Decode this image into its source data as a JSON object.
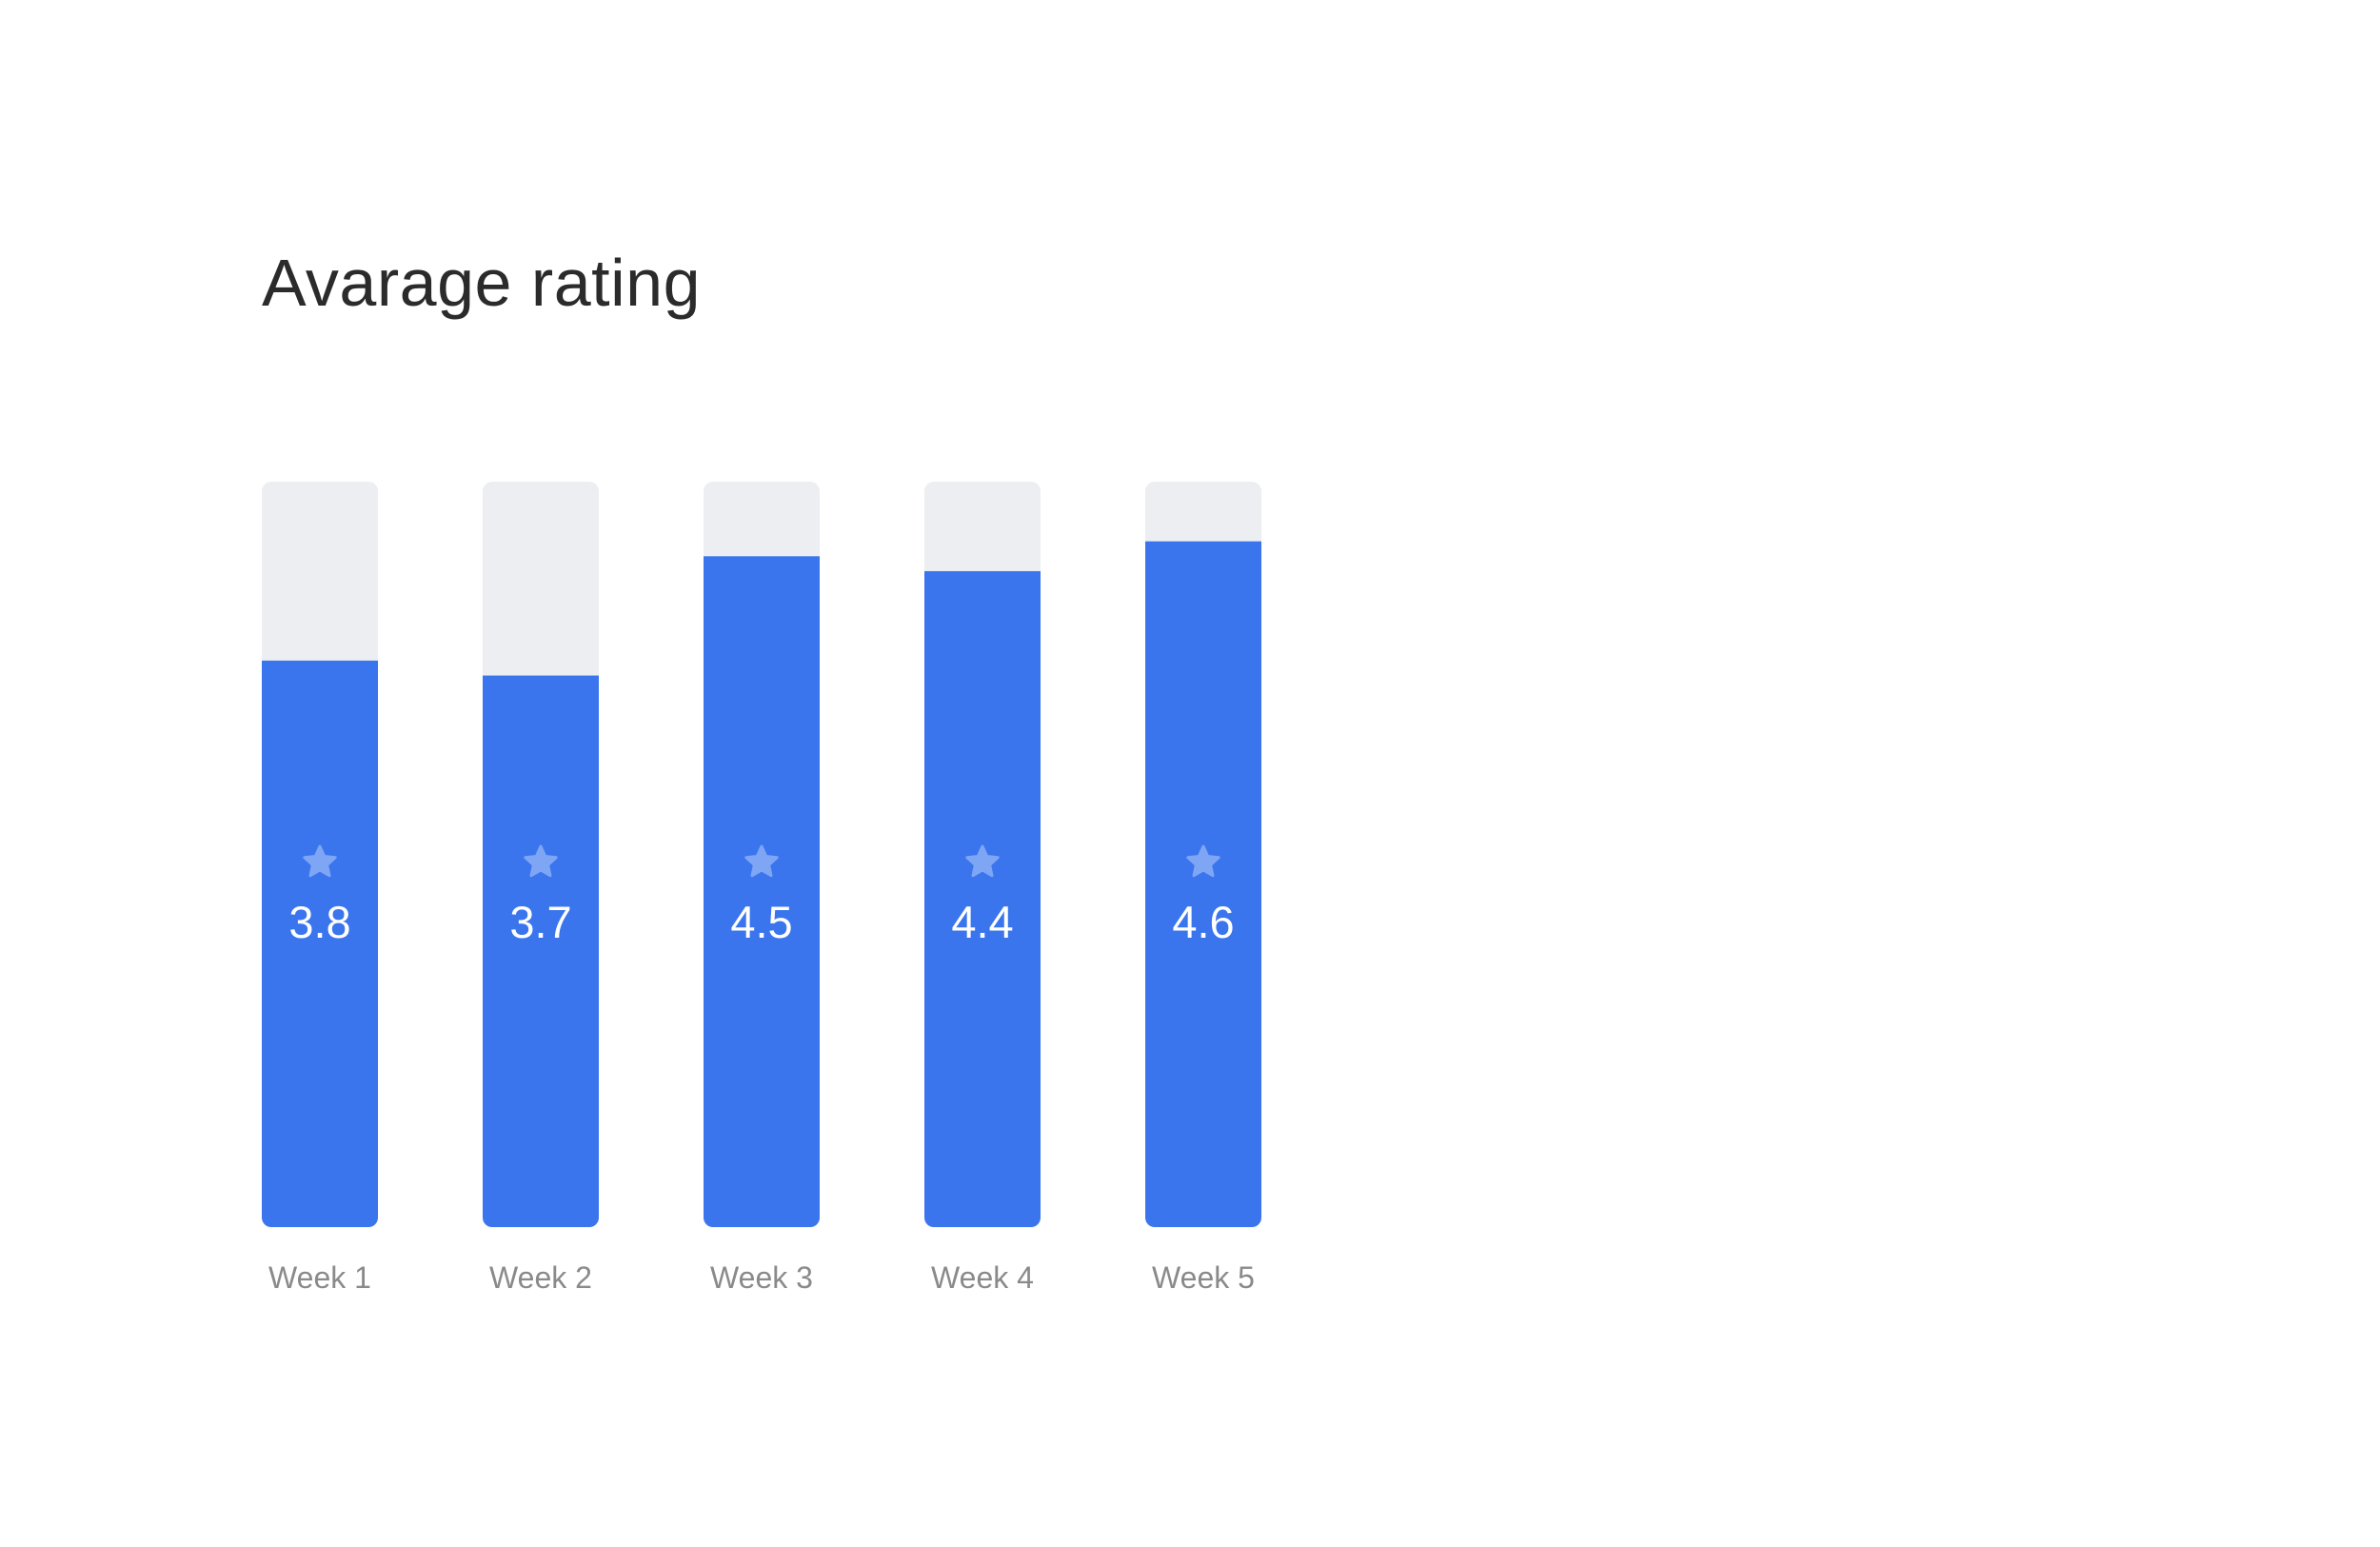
{
  "chart_data": {
    "type": "bar",
    "title": "Avarage rating",
    "categories": [
      "Week 1",
      "Week 2",
      "Week 3",
      "Week 4",
      "Week 5"
    ],
    "values": [
      3.8,
      3.7,
      4.5,
      4.4,
      4.6
    ],
    "ylim": [
      0,
      5
    ],
    "grid": false,
    "legend": "none",
    "value_icon": "star-icon",
    "colors": {
      "bar_fill": "#3a75ee",
      "bar_track": "#edeef2",
      "star": "#7fa6f5"
    }
  }
}
